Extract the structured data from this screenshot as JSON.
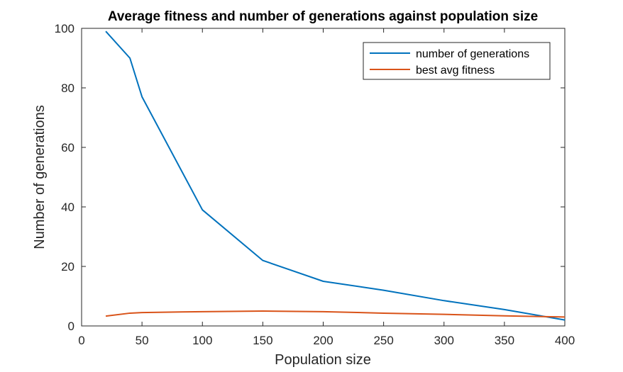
{
  "chart_data": {
    "type": "line",
    "title": "Average fitness and number of generations against population size",
    "xlabel": "Population size",
    "ylabel": "Number of generations",
    "xlim": [
      0,
      400
    ],
    "ylim": [
      0,
      100
    ],
    "xticks": [
      0,
      50,
      100,
      150,
      200,
      250,
      300,
      350,
      400
    ],
    "yticks": [
      0,
      20,
      40,
      60,
      80,
      100
    ],
    "grid": false,
    "legend_position": "top-right",
    "series": [
      {
        "name": "number of generations",
        "color": "#0072BD",
        "x": [
          20,
          40,
          50,
          100,
          150,
          200,
          250,
          300,
          350,
          400
        ],
        "y": [
          99,
          90,
          77,
          39,
          22,
          15,
          12,
          8.5,
          5.5,
          2
        ]
      },
      {
        "name": "best avg fitness",
        "color": "#D95319",
        "x": [
          20,
          40,
          50,
          100,
          150,
          200,
          250,
          300,
          350,
          400
        ],
        "y": [
          3.3,
          4.3,
          4.5,
          4.8,
          5.0,
          4.8,
          4.3,
          3.9,
          3.4,
          3.0
        ]
      }
    ]
  }
}
